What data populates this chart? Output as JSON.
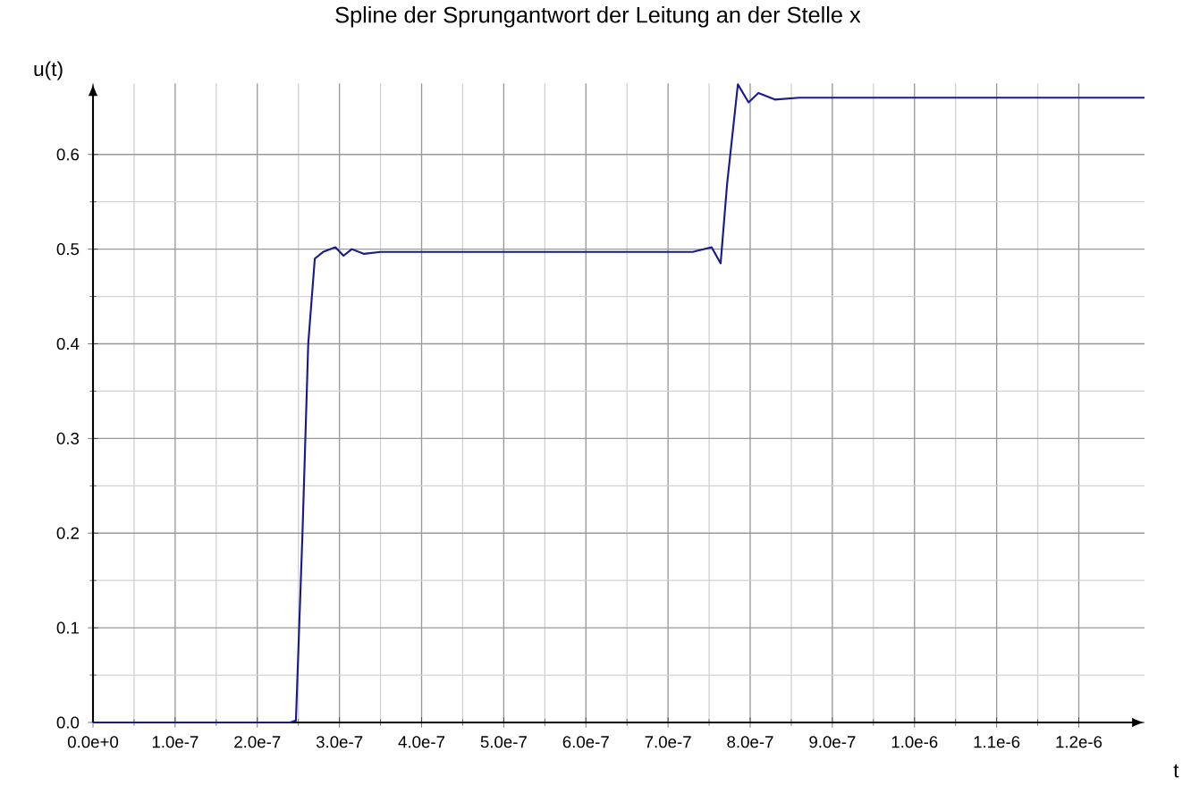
{
  "chart_data": {
    "type": "line",
    "title": "Spline der Sprungantwort der Leitung an der Stelle x",
    "xlabel": "t",
    "ylabel": "u(t)",
    "x": [
      0,
      1e-07,
      2e-07,
      2.4e-07,
      2.47e-07,
      2.55e-07,
      2.62e-07,
      2.7e-07,
      2.8e-07,
      2.95e-07,
      3.05e-07,
      3.15e-07,
      3.3e-07,
      3.5e-07,
      4.5e-07,
      5.5e-07,
      6.5e-07,
      7e-07,
      7.3e-07,
      7.53e-07,
      7.64e-07,
      7.72e-07,
      7.85e-07,
      7.98e-07,
      8.1e-07,
      8.3e-07,
      8.6e-07,
      9.5e-07,
      1.05e-06,
      1.15e-06,
      1.28e-06
    ],
    "series": [
      {
        "color": "#1a1a8c",
        "values": [
          0,
          0,
          0,
          0,
          0.002,
          0.2,
          0.4,
          0.49,
          0.497,
          0.502,
          0.493,
          0.5,
          0.495,
          0.497,
          0.497,
          0.497,
          0.497,
          0.497,
          0.497,
          0.502,
          0.485,
          0.57,
          0.674,
          0.655,
          0.665,
          0.658,
          0.66,
          0.66,
          0.66,
          0.66,
          0.66
        ]
      }
    ],
    "xlim": [
      0,
      1.28e-06
    ],
    "ylim": [
      0,
      0.675
    ],
    "xticks": [
      {
        "value": 0,
        "label": "0.0e+0"
      },
      {
        "value": 1e-07,
        "label": "1.0e-7"
      },
      {
        "value": 2e-07,
        "label": "2.0e-7"
      },
      {
        "value": 3e-07,
        "label": "3.0e-7"
      },
      {
        "value": 4e-07,
        "label": "4.0e-7"
      },
      {
        "value": 5e-07,
        "label": "5.0e-7"
      },
      {
        "value": 6e-07,
        "label": "6.0e-7"
      },
      {
        "value": 7e-07,
        "label": "7.0e-7"
      },
      {
        "value": 8e-07,
        "label": "8.0e-7"
      },
      {
        "value": 9e-07,
        "label": "9.0e-7"
      },
      {
        "value": 1e-06,
        "label": "1.0e-6"
      },
      {
        "value": 1.1e-06,
        "label": "1.1e-6"
      },
      {
        "value": 1.2e-06,
        "label": "1.2e-6"
      }
    ],
    "yticks": [
      {
        "value": 0,
        "label": "0.0"
      },
      {
        "value": 0.1,
        "label": "0.1"
      },
      {
        "value": 0.2,
        "label": "0.2"
      },
      {
        "value": 0.3,
        "label": "0.3"
      },
      {
        "value": 0.4,
        "label": "0.4"
      },
      {
        "value": 0.5,
        "label": "0.5"
      },
      {
        "value": 0.6,
        "label": "0.6"
      }
    ],
    "grid": true,
    "marker": "none",
    "line_style": "solid"
  }
}
